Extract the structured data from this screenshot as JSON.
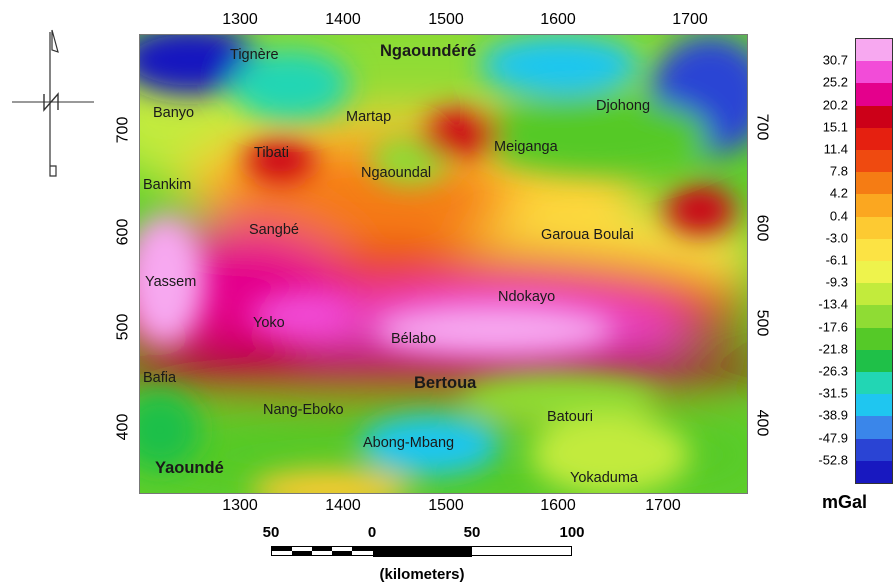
{
  "axes": {
    "x_ticks": [
      "1300",
      "1400",
      "1500",
      "1600",
      "1700"
    ],
    "y_ticks": [
      "700",
      "600",
      "500",
      "400"
    ]
  },
  "places": [
    {
      "name": "Tignère",
      "bold": false
    },
    {
      "name": "Ngaoundéré",
      "bold": true
    },
    {
      "name": "Banyo",
      "bold": false
    },
    {
      "name": "Martap",
      "bold": false
    },
    {
      "name": "Djohong",
      "bold": false
    },
    {
      "name": "Tibati",
      "bold": false
    },
    {
      "name": "Meiganga",
      "bold": false
    },
    {
      "name": "Ngaoundal",
      "bold": false
    },
    {
      "name": "Bankim",
      "bold": false
    },
    {
      "name": "Sangbé",
      "bold": false
    },
    {
      "name": "Garoua Boulai",
      "bold": false
    },
    {
      "name": "Yassem",
      "bold": false
    },
    {
      "name": "Ndokayo",
      "bold": false
    },
    {
      "name": "Yoko",
      "bold": false
    },
    {
      "name": "Bélabo",
      "bold": false
    },
    {
      "name": "Bafia",
      "bold": false
    },
    {
      "name": "Bertoua",
      "bold": true
    },
    {
      "name": "Nang-Eboko",
      "bold": false
    },
    {
      "name": "Batouri",
      "bold": false
    },
    {
      "name": "Abong-Mbang",
      "bold": false
    },
    {
      "name": "Yaoundé",
      "bold": true
    },
    {
      "name": "Yokaduma",
      "bold": false
    }
  ],
  "legend": {
    "unit": "mGal",
    "labels": [
      "30.7",
      "25.2",
      "20.2",
      "15.1",
      "11.4",
      "7.8",
      "4.2",
      "0.4",
      "-3.0",
      "-6.1",
      "-9.3",
      "-13.4",
      "-17.6",
      "-21.8",
      "-26.3",
      "-31.5",
      "-38.9",
      "-47.9",
      "-52.8"
    ],
    "colors": [
      "#f7a8f0",
      "#f24cd8",
      "#e4008c",
      "#cc0018",
      "#e52010",
      "#ef4a10",
      "#f57c14",
      "#fba720",
      "#fdca32",
      "#fce344",
      "#eef34c",
      "#c2eb3c",
      "#8fdc34",
      "#55c928",
      "#1fc048",
      "#22d6b4",
      "#1fc6f0",
      "#3a86ea",
      "#2a44d4",
      "#1818c0"
    ]
  },
  "scale": {
    "labels": [
      "50",
      "0",
      "50",
      "100"
    ],
    "unit": "(kilometers)"
  }
}
